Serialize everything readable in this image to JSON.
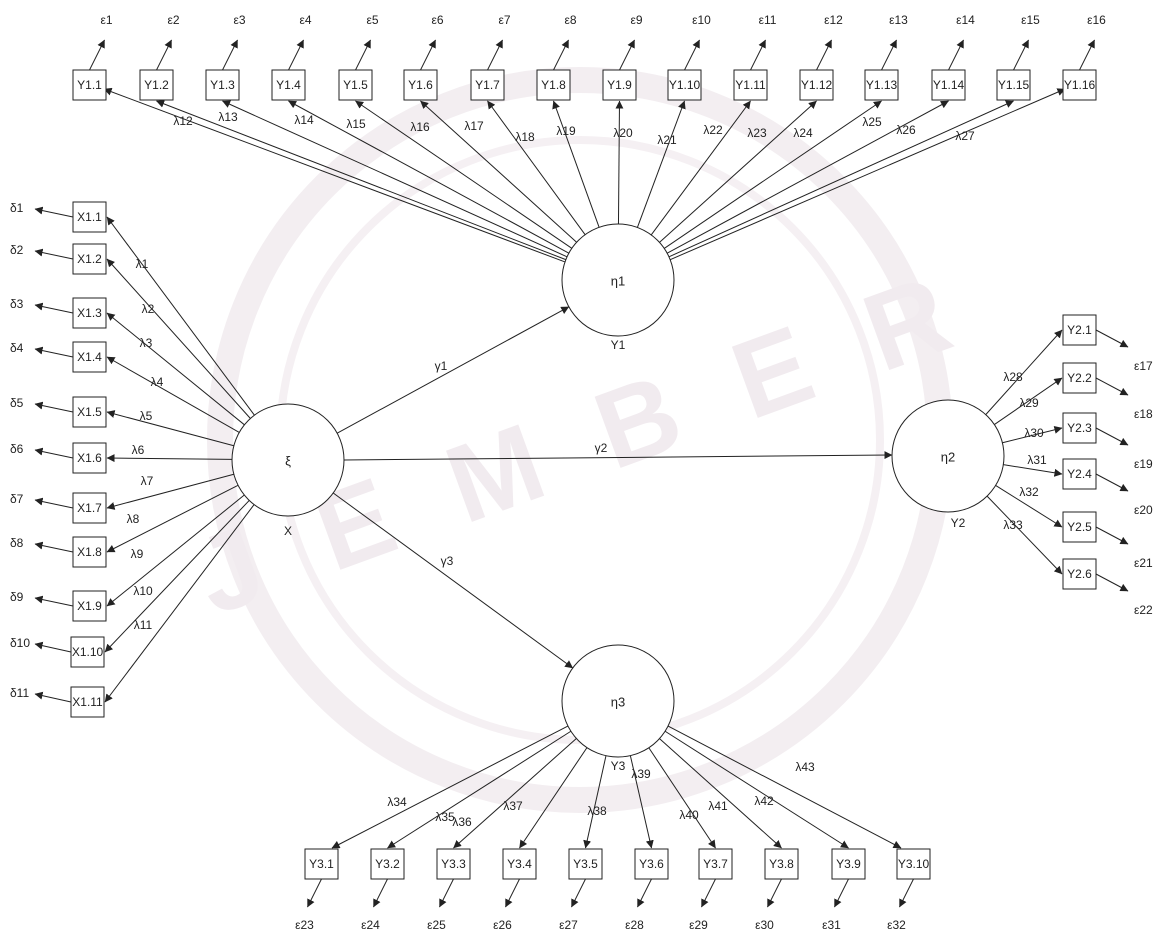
{
  "watermark": {
    "text": "J E M B E R",
    "color": "#eee7ec"
  },
  "latents": {
    "xi": {
      "symbol": "ξ",
      "label": "X"
    },
    "eta1": {
      "symbol": "η1",
      "label": "Y1"
    },
    "eta2": {
      "symbol": "η2",
      "label": "Y2"
    },
    "eta3": {
      "symbol": "η3",
      "label": "Y3"
    }
  },
  "paths": {
    "gamma1": "γ1",
    "gamma2": "γ2",
    "gamma3": "γ3"
  },
  "x_indicators": [
    {
      "box": "X1.1",
      "loading": "λ1",
      "error": "δ1"
    },
    {
      "box": "X1.2",
      "loading": "λ2",
      "error": "δ2"
    },
    {
      "box": "X1.3",
      "loading": "λ3",
      "error": "δ3"
    },
    {
      "box": "X1.4",
      "loading": "λ4",
      "error": "δ4"
    },
    {
      "box": "X1.5",
      "loading": "λ5",
      "error": "δ5"
    },
    {
      "box": "X1.6",
      "loading": "λ6",
      "error": "δ6"
    },
    {
      "box": "X1.7",
      "loading": "λ7",
      "error": "δ7"
    },
    {
      "box": "X1.8",
      "loading": "λ8",
      "error": "δ8"
    },
    {
      "box": "X1.9",
      "loading": "λ9",
      "error": "δ9"
    },
    {
      "box": "X1.10",
      "loading": "λ10",
      "error": "δ10"
    },
    {
      "box": "X1.11",
      "loading": "λ11",
      "error": "δ11"
    }
  ],
  "y1_indicators": [
    {
      "box": "Y1.1",
      "loading": "λ12",
      "error": "ε1"
    },
    {
      "box": "Y1.2",
      "loading": "λ13",
      "error": "ε2"
    },
    {
      "box": "Y1.3",
      "loading": "λ14",
      "error": "ε3"
    },
    {
      "box": "Y1.4",
      "loading": "λ15",
      "error": "ε4"
    },
    {
      "box": "Y1.5",
      "loading": "λ16",
      "error": "ε5"
    },
    {
      "box": "Y1.6",
      "loading": "λ17",
      "error": "ε6"
    },
    {
      "box": "Y1.7",
      "loading": "λ18",
      "error": "ε7"
    },
    {
      "box": "Y1.8",
      "loading": "λ19",
      "error": "ε8"
    },
    {
      "box": "Y1.9",
      "loading": "λ20",
      "error": "ε9"
    },
    {
      "box": "Y1.10",
      "loading": "λ21",
      "error": "ε10"
    },
    {
      "box": "Y1.11",
      "loading": "λ22",
      "error": "ε11"
    },
    {
      "box": "Y1.12",
      "loading": "λ23",
      "error": "ε12"
    },
    {
      "box": "Y1.13",
      "loading": "λ24",
      "error": "ε13"
    },
    {
      "box": "Y1.14",
      "loading": "λ25",
      "error": "ε14"
    },
    {
      "box": "Y1.15",
      "loading": "λ26",
      "error": "ε15"
    },
    {
      "box": "Y1.16",
      "loading": "λ27",
      "error": "ε16"
    }
  ],
  "y2_indicators": [
    {
      "box": "Y2.1",
      "loading": "λ28",
      "error": "ε17"
    },
    {
      "box": "Y2.2",
      "loading": "λ29",
      "error": "ε18"
    },
    {
      "box": "Y2.3",
      "loading": "λ30",
      "error": "ε19"
    },
    {
      "box": "Y2.4",
      "loading": "λ31",
      "error": "ε20"
    },
    {
      "box": "Y2.5",
      "loading": "λ32",
      "error": "ε21"
    },
    {
      "box": "Y2.6",
      "loading": "λ33",
      "error": "ε22"
    }
  ],
  "y3_indicators": [
    {
      "box": "Y3.1",
      "loading": "λ34",
      "error": "ε23"
    },
    {
      "box": "Y3.2",
      "loading": "λ35",
      "error": "ε24"
    },
    {
      "box": "Y3.3",
      "loading": "λ36",
      "error": "ε25"
    },
    {
      "box": "Y3.4",
      "loading": "λ37",
      "error": "ε26"
    },
    {
      "box": "Y3.5",
      "loading": "λ38",
      "error": "ε27"
    },
    {
      "box": "Y3.6",
      "loading": "λ39",
      "error": "ε28"
    },
    {
      "box": "Y3.7",
      "loading": "λ40",
      "error": "ε29"
    },
    {
      "box": "Y3.8",
      "loading": "λ41",
      "error": "ε30"
    },
    {
      "box": "Y3.9",
      "loading": "λ42",
      "error": "ε31"
    },
    {
      "box": "Y3.10",
      "loading": "λ43",
      "error": "ε32"
    }
  ]
}
